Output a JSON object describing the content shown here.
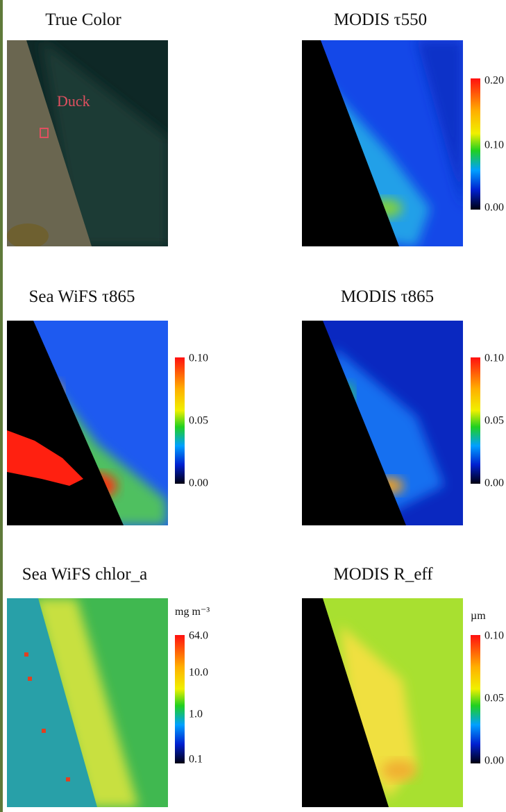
{
  "panels": [
    {
      "title": "True Color",
      "annotation": "Duck"
    },
    {
      "title": "MODIS τ550",
      "colorbar_ticks": [
        "0.20",
        "0.10",
        "0.00"
      ]
    },
    {
      "title": "Sea WiFS τ865",
      "colorbar_ticks": [
        "0.10",
        "0.05",
        "0.00"
      ]
    },
    {
      "title": "MODIS τ865",
      "colorbar_ticks": [
        "0.10",
        "0.05",
        "0.00"
      ]
    },
    {
      "title": "Sea WiFS chlor_a",
      "colorbar_unit": "mg m⁻³",
      "colorbar_ticks": [
        "64.0",
        "10.0",
        "1.0",
        "0.1"
      ]
    },
    {
      "title": "MODIS R_eff",
      "colorbar_unit": "µm",
      "colorbar_ticks": [
        "0.10",
        "0.05",
        "0.00"
      ]
    }
  ]
}
